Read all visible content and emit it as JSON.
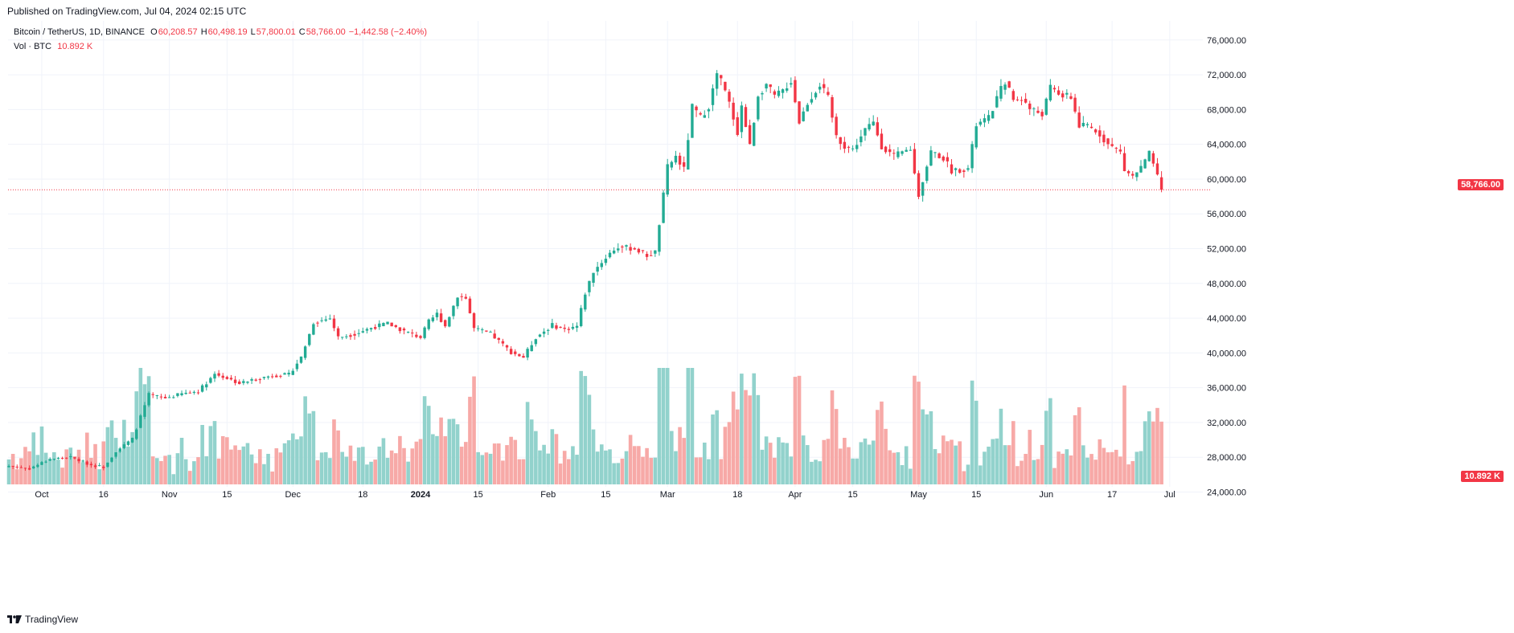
{
  "published": "Published on TradingView.com, Jul 04, 2024 02:15 UTC",
  "legend": {
    "symbol": "Bitcoin / TetherUS, 1D, BINANCE",
    "o_label": "O",
    "o": "60,208.57",
    "h_label": "H",
    "h": "60,498.19",
    "l_label": "L",
    "l": "57,800.01",
    "c_label": "C",
    "c": "58,766.00",
    "change": "−1,442.58 (−2.40%)",
    "vol_label": "Vol · BTC",
    "vol_value": "10.892 K"
  },
  "price_badge": "58,766.00",
  "volume_badge": "10.892 K",
  "footer": {
    "brand": "TradingView",
    "logo_icon": "tradingview-logo-icon"
  },
  "colors": {
    "up": "#22ab94",
    "down": "#f23645",
    "up_vol": "#92d2cc",
    "down_vol": "#f7a9a7",
    "grid": "#f0f3fa",
    "last_price_line": "#f23645"
  },
  "chart_data": {
    "type": "candlestick",
    "symbol": "BTC/USDT",
    "interval": "1D",
    "price_axis": {
      "ticks": [
        "76,000.00",
        "72,000.00",
        "68,000.00",
        "64,000.00",
        "60,000.00",
        "56,000.00",
        "52,000.00",
        "48,000.00",
        "44,000.00",
        "40,000.00",
        "36,000.00",
        "32,000.00",
        "28,000.00",
        "24,000.00"
      ],
      "range": [
        22200,
        78200
      ]
    },
    "time_axis": {
      "ticks": [
        {
          "label": "Oct",
          "bar": 8
        },
        {
          "label": "16",
          "bar": 23
        },
        {
          "label": "Nov",
          "bar": 39
        },
        {
          "label": "15",
          "bar": 53
        },
        {
          "label": "Dec",
          "bar": 69
        },
        {
          "label": "18",
          "bar": 86
        },
        {
          "label": "2024",
          "bar": 100
        },
        {
          "label": "15",
          "bar": 114
        },
        {
          "label": "Feb",
          "bar": 131
        },
        {
          "label": "15",
          "bar": 145
        },
        {
          "label": "Mar",
          "bar": 160
        },
        {
          "label": "18",
          "bar": 177
        },
        {
          "label": "Apr",
          "bar": 191
        },
        {
          "label": "15",
          "bar": 205
        },
        {
          "label": "May",
          "bar": 221
        },
        {
          "label": "15",
          "bar": 235
        },
        {
          "label": "Jun",
          "bar": 252
        },
        {
          "label": "17",
          "bar": 268
        },
        {
          "label": "Jul",
          "bar": 282
        }
      ]
    },
    "last_price": 58766,
    "close_keypoints": [
      [
        0,
        27000
      ],
      [
        5,
        26700
      ],
      [
        10,
        27800
      ],
      [
        15,
        28000
      ],
      [
        20,
        27100
      ],
      [
        23,
        26900
      ],
      [
        26,
        28700
      ],
      [
        30,
        30100
      ],
      [
        34,
        35200
      ],
      [
        38,
        34800
      ],
      [
        42,
        35300
      ],
      [
        46,
        35600
      ],
      [
        50,
        37600
      ],
      [
        53,
        37100
      ],
      [
        56,
        36500
      ],
      [
        60,
        37000
      ],
      [
        64,
        37400
      ],
      [
        68,
        37500
      ],
      [
        71,
        39500
      ],
      [
        74,
        43500
      ],
      [
        78,
        44000
      ],
      [
        80,
        41800
      ],
      [
        84,
        42200
      ],
      [
        88,
        42900
      ],
      [
        92,
        43400
      ],
      [
        96,
        42500
      ],
      [
        100,
        41800
      ],
      [
        102,
        43600
      ],
      [
        104,
        44500
      ],
      [
        106,
        43100
      ],
      [
        109,
        46600
      ],
      [
        111,
        46300
      ],
      [
        113,
        42800
      ],
      [
        117,
        42200
      ],
      [
        122,
        40100
      ],
      [
        125,
        39500
      ],
      [
        128,
        41800
      ],
      [
        132,
        43200
      ],
      [
        135,
        42700
      ],
      [
        138,
        43100
      ],
      [
        140,
        46900
      ],
      [
        142,
        49400
      ],
      [
        146,
        51500
      ],
      [
        148,
        52200
      ],
      [
        152,
        52000
      ],
      [
        155,
        51200
      ],
      [
        157,
        51600
      ],
      [
        160,
        61400
      ],
      [
        162,
        62600
      ],
      [
        164,
        61100
      ],
      [
        166,
        68300
      ],
      [
        168,
        67100
      ],
      [
        170,
        68400
      ],
      [
        172,
        72100
      ],
      [
        173,
        71300
      ],
      [
        175,
        68700
      ],
      [
        177,
        65400
      ],
      [
        178,
        68400
      ],
      [
        180,
        63800
      ],
      [
        182,
        69700
      ],
      [
        184,
        70900
      ],
      [
        186,
        69500
      ],
      [
        188,
        70200
      ],
      [
        190,
        71300
      ],
      [
        192,
        66600
      ],
      [
        194,
        68800
      ],
      [
        197,
        70900
      ],
      [
        199,
        69300
      ],
      [
        201,
        64900
      ],
      [
        203,
        63800
      ],
      [
        205,
        63400
      ],
      [
        208,
        65700
      ],
      [
        210,
        66500
      ],
      [
        212,
        63800
      ],
      [
        215,
        62600
      ],
      [
        219,
        63500
      ],
      [
        220,
        60600
      ],
      [
        221,
        58200
      ],
      [
        224,
        63200
      ],
      [
        227,
        62400
      ],
      [
        229,
        61000
      ],
      [
        233,
        61200
      ],
      [
        235,
        66200
      ],
      [
        238,
        67000
      ],
      [
        240,
        69300
      ],
      [
        242,
        71300
      ],
      [
        244,
        69100
      ],
      [
        246,
        69300
      ],
      [
        248,
        68100
      ],
      [
        251,
        67500
      ],
      [
        253,
        70500
      ],
      [
        256,
        69600
      ],
      [
        258,
        69400
      ],
      [
        260,
        66100
      ],
      [
        262,
        66100
      ],
      [
        265,
        65200
      ],
      [
        267,
        64000
      ],
      [
        270,
        63100
      ],
      [
        271,
        61000
      ],
      [
        273,
        60300
      ],
      [
        275,
        61300
      ],
      [
        277,
        62900
      ],
      [
        278,
        61800
      ],
      [
        279,
        60200
      ],
      [
        280,
        58766
      ]
    ],
    "volume_note": "Vol · BTC histogram, colored by candle direction"
  }
}
